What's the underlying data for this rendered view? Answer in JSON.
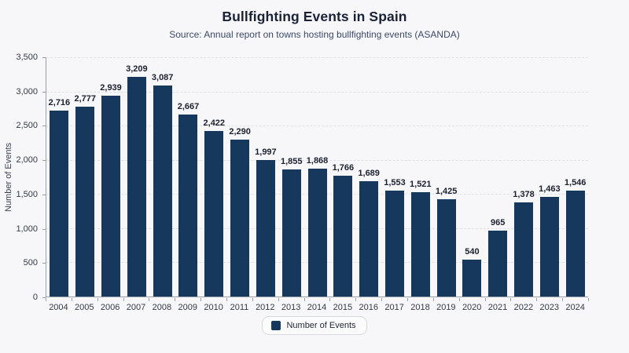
{
  "page": {
    "title": "Bullfighting Events in Spain",
    "subtitle": "Source: Annual report on towns hosting bullfighting events (ASANDA)"
  },
  "chart_data": {
    "type": "bar",
    "title": "Bullfighting Events in Spain",
    "subtitle": "Source: Annual report on towns hosting bullfighting events (ASANDA)",
    "xlabel": "",
    "ylabel": "Number of Events",
    "ylim": [
      0,
      3500
    ],
    "grid": true,
    "ytick_values": [
      0,
      500,
      1000,
      1500,
      2000,
      2500,
      3000,
      3500
    ],
    "ytick_labels": [
      "0",
      "500",
      "1,000",
      "1,500",
      "2,000",
      "2,500",
      "3,000",
      "3,500"
    ],
    "categories": [
      "2004",
      "2005",
      "2006",
      "2007",
      "2008",
      "2009",
      "2010",
      "2011",
      "2012",
      "2013",
      "2014",
      "2015",
      "2016",
      "2017",
      "2018",
      "2019",
      "2020",
      "2021",
      "2022",
      "2023",
      "2024"
    ],
    "values": [
      2716,
      2777,
      2939,
      3209,
      3087,
      2667,
      2422,
      2290,
      1997,
      1855,
      1868,
      1766,
      1689,
      1553,
      1521,
      1425,
      540,
      965,
      1378,
      1463,
      1546
    ],
    "value_labels": [
      "2,716",
      "2,777",
      "2,939",
      "3,209",
      "3,087",
      "2,667",
      "2,422",
      "2,290",
      "1,997",
      "1,855",
      "1,868",
      "1,766",
      "1,689",
      "1,553",
      "1,521",
      "1,425",
      "540",
      "965",
      "1,378",
      "1,463",
      "1,546"
    ],
    "legend": {
      "position": "bottom",
      "label": "Number of Events"
    }
  },
  "colors": {
    "bar": "#17385d",
    "title": "#1a2238",
    "subtitle": "#3c4a66",
    "background": "#f7f7f9",
    "grid": "#e0e1e6",
    "axis": "#9aa0aa",
    "value_label": "#1c2130"
  }
}
